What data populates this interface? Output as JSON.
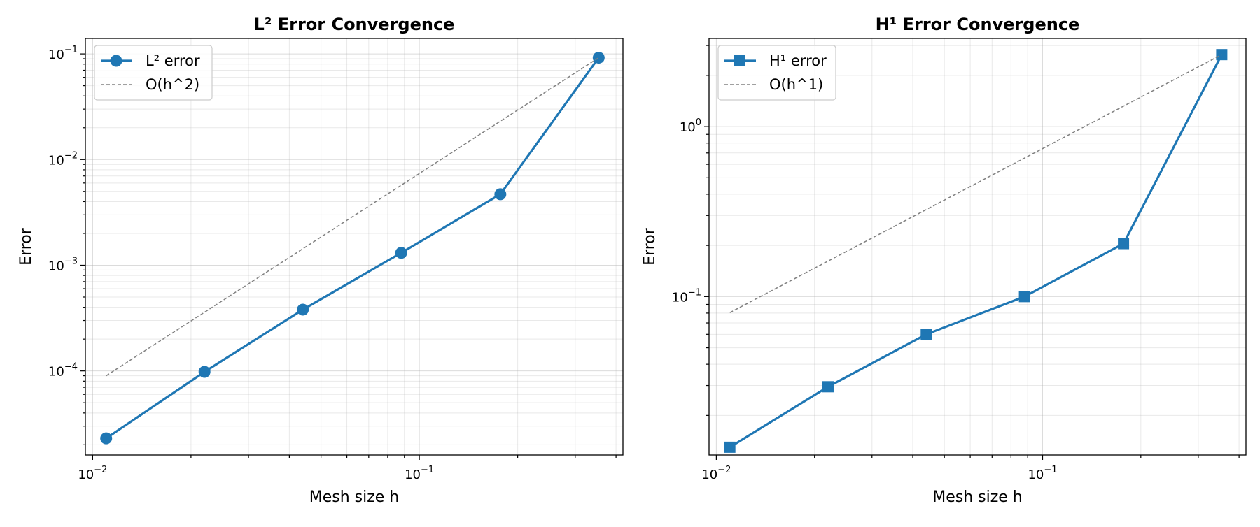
{
  "chart_data": [
    {
      "type": "line",
      "title": "L² Error Convergence",
      "xlabel": "Mesh size h",
      "ylabel": "Error",
      "xscale": "log",
      "yscale": "log",
      "xlim": [
        0.0095,
        0.42
      ],
      "ylim": [
        1.6e-05,
        0.14
      ],
      "grid": true,
      "grid_minor": true,
      "legend_position": "top-left",
      "x_ticks": [
        {
          "value": 0.01,
          "base": "10",
          "exp": "−2"
        },
        {
          "value": 0.1,
          "base": "10",
          "exp": "−1"
        }
      ],
      "y_ticks": [
        {
          "value": 0.0001,
          "base": "10",
          "exp": "−4"
        },
        {
          "value": 0.001,
          "base": "10",
          "exp": "−3"
        },
        {
          "value": 0.01,
          "base": "10",
          "exp": "−2"
        },
        {
          "value": 0.1,
          "base": "10",
          "exp": "−1"
        }
      ],
      "series": [
        {
          "name": "L² error",
          "style": "solid",
          "marker": "circle",
          "color": "#1f77b4",
          "x": [
            0.011,
            0.022,
            0.044,
            0.088,
            0.177,
            0.354
          ],
          "y": [
            2.3e-05,
            9.8e-05,
            0.00038,
            0.00131,
            0.0047,
            0.092
          ]
        },
        {
          "name": "O(h^2)",
          "style": "dashed",
          "marker": "none",
          "color": "#808080",
          "x": [
            0.011,
            0.354
          ],
          "y": [
            9e-05,
            0.092
          ]
        }
      ]
    },
    {
      "type": "line",
      "title": "H¹ Error Convergence",
      "xlabel": "Mesh size h",
      "ylabel": "Error",
      "xscale": "log",
      "yscale": "log",
      "xlim": [
        0.0095,
        0.42
      ],
      "ylim": [
        0.0117,
        3.3
      ],
      "grid": true,
      "grid_minor": true,
      "legend_position": "top-left",
      "x_ticks": [
        {
          "value": 0.01,
          "base": "10",
          "exp": "−2"
        },
        {
          "value": 0.1,
          "base": "10",
          "exp": "−1"
        }
      ],
      "y_ticks": [
        {
          "value": 0.1,
          "base": "10",
          "exp": "−1"
        },
        {
          "value": 1,
          "base": "10",
          "exp": "0"
        }
      ],
      "series": [
        {
          "name": "H¹ error",
          "style": "solid",
          "marker": "square",
          "color": "#1f77b4",
          "x": [
            0.011,
            0.022,
            0.044,
            0.088,
            0.177,
            0.354
          ],
          "y": [
            0.013,
            0.0295,
            0.06,
            0.1,
            0.205,
            2.65
          ]
        },
        {
          "name": "O(h^1)",
          "style": "dashed",
          "marker": "none",
          "color": "#808080",
          "x": [
            0.011,
            0.354
          ],
          "y": [
            0.0805,
            2.65
          ]
        }
      ]
    }
  ]
}
